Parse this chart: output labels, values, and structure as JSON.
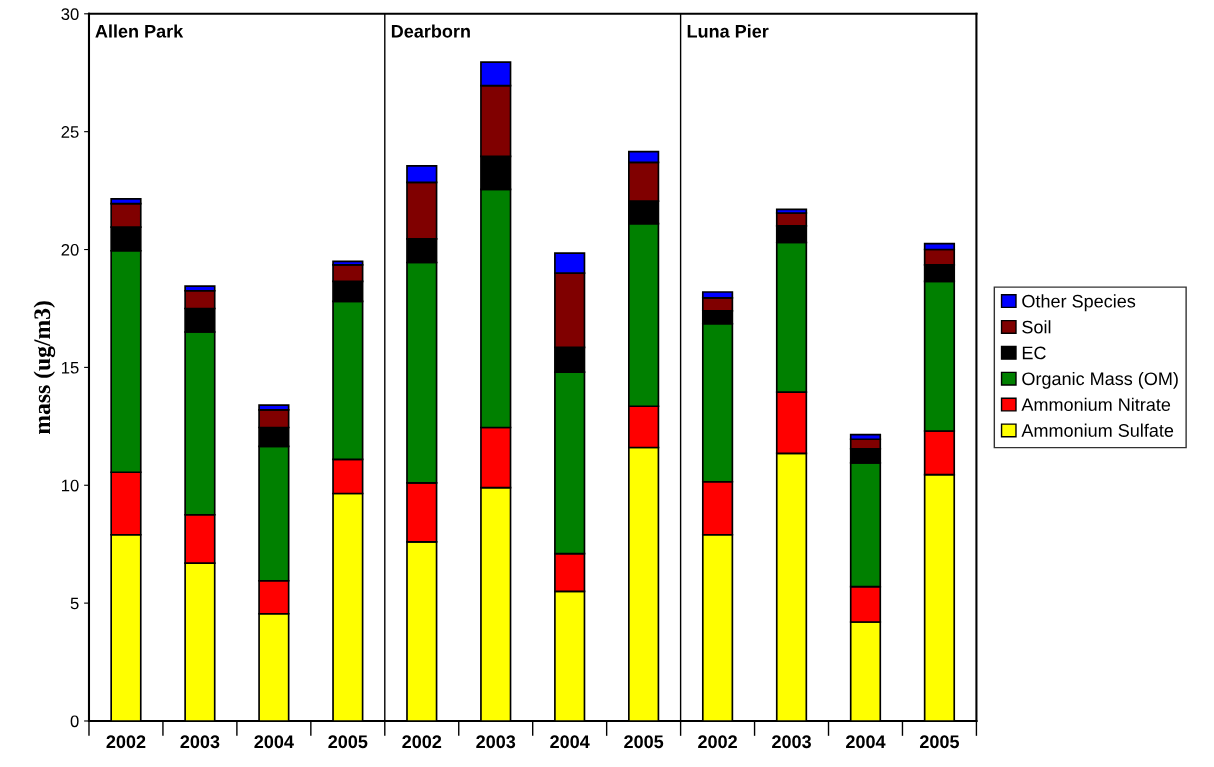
{
  "chart_data": {
    "type": "bar",
    "stacked": true,
    "ylabel": "mass (ug/m3)",
    "categories": [
      "2002",
      "2003",
      "2004",
      "2005",
      "2002",
      "2003",
      "2004",
      "2005",
      "2002",
      "2003",
      "2004",
      "2005"
    ],
    "annotations": [
      "Allen Park",
      "Dearborn",
      "Luna Pier"
    ],
    "series": [
      {
        "name": "Ammonium Sulfate",
        "color": "#ffff00",
        "values": [
          7.9,
          6.7,
          4.55,
          9.65,
          7.6,
          9.9,
          5.5,
          11.6,
          7.9,
          11.35,
          4.2,
          10.45
        ]
      },
      {
        "name": "Ammonium Nitrate",
        "color": "#ff0000",
        "values": [
          2.65,
          2.05,
          1.4,
          1.45,
          2.5,
          2.55,
          1.6,
          1.75,
          2.25,
          2.6,
          1.5,
          1.85
        ]
      },
      {
        "name": "Organic Mass (OM)",
        "color": "#008000",
        "values": [
          9.4,
          7.75,
          5.7,
          6.7,
          9.35,
          10.1,
          7.7,
          7.75,
          6.7,
          6.35,
          5.25,
          6.35
        ]
      },
      {
        "name": "EC",
        "color": "#000000",
        "values": [
          1.0,
          1.0,
          0.8,
          0.85,
          1.0,
          1.4,
          1.05,
          0.95,
          0.55,
          0.7,
          0.6,
          0.7
        ]
      },
      {
        "name": "Soil",
        "color": "#800000",
        "values": [
          1.0,
          0.75,
          0.75,
          0.7,
          2.4,
          3.0,
          3.15,
          1.65,
          0.55,
          0.55,
          0.4,
          0.65
        ]
      },
      {
        "name": "Other Species",
        "color": "#0000ff",
        "values": [
          0.2,
          0.2,
          0.2,
          0.15,
          0.7,
          1.0,
          0.85,
          0.45,
          0.25,
          0.15,
          0.2,
          0.25
        ]
      }
    ],
    "ylim": [
      0,
      30
    ],
    "yticks": [
      0,
      5,
      10,
      15,
      20,
      25,
      30
    ],
    "grid": false,
    "legend": "right"
  }
}
